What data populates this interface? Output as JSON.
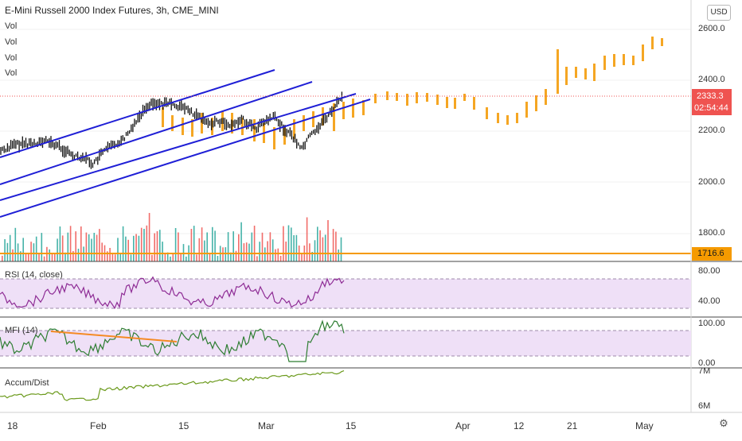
{
  "header": {
    "title": "E-Mini Russell 2000 Index Futures, 3h, CME_MINI",
    "vol_labels": [
      "Vol",
      "Vol",
      "Vol",
      "Vol"
    ],
    "currency_button": "USD"
  },
  "price_axis": {
    "ticks": [
      "2600.0",
      "2400.0",
      "2200.0",
      "2000.0",
      "1800.0"
    ],
    "last_price": "2333.3",
    "countdown": "02:54:44",
    "level_label": "1716.6"
  },
  "rsi": {
    "label": "RSI (14, close)",
    "ticks": [
      "80.00",
      "40.00"
    ]
  },
  "mfi": {
    "label": "MFI (14)",
    "ticks": [
      "100.00",
      "0.00"
    ]
  },
  "accum": {
    "label": "Accum/Dist",
    "ticks": [
      "7M",
      "6M"
    ]
  },
  "time_axis": {
    "labels": [
      "18",
      "Feb",
      "15",
      "Mar",
      "15",
      "Apr",
      "12",
      "21",
      "May"
    ]
  },
  "colors": {
    "channel": "#1f1fd6",
    "candle": "#111111",
    "projection": "#f5a623",
    "level": "#f59a00",
    "last_price_tag": "#ef5350",
    "rsi_line": "#8e2c95",
    "mfi_line": "#2e7d32",
    "accum_line": "#6b9a1c",
    "vol_up": "#26a69a",
    "vol_down": "#ef5350"
  }
}
